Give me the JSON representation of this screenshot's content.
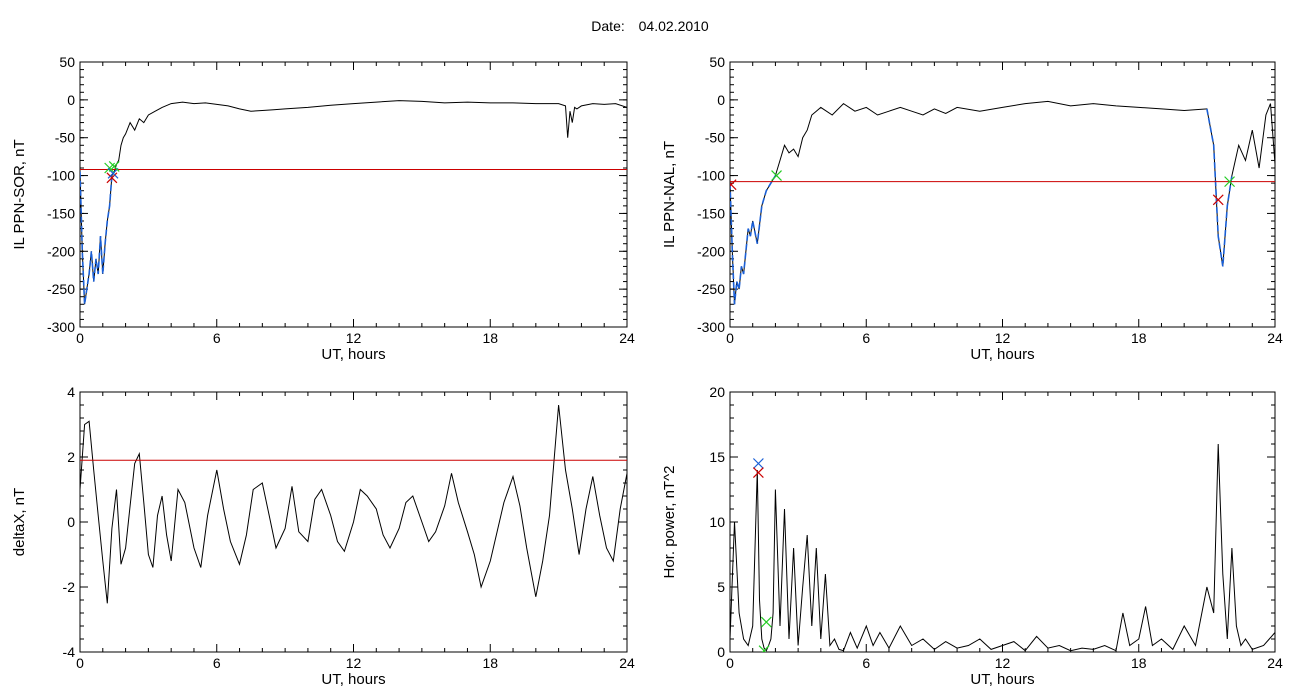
{
  "title": {
    "label": "Date:",
    "value": "04.02.2010"
  },
  "colors": {
    "axis": "#000000",
    "trace": "#000000",
    "threshold": "#cc0000",
    "highlight": "#1a5fd6",
    "marker_red": "#cc0000",
    "marker_green": "#22cc22",
    "marker_blue": "#1a5fd6"
  },
  "chart_data": [
    {
      "type": "line",
      "ylabel": "IL PPN-SOR, nT",
      "xlabel": "UT, hours",
      "xlim": [
        0,
        24
      ],
      "ylim": [
        -300,
        50
      ],
      "xticks": [
        0,
        6,
        12,
        18,
        24
      ],
      "yticks": [
        -300,
        -250,
        -200,
        -150,
        -100,
        -50,
        0,
        50
      ],
      "threshold": -92,
      "series": [
        {
          "x": [
            0,
            0.1,
            0.2,
            0.3,
            0.4,
            0.5,
            0.6,
            0.7,
            0.8,
            0.9,
            1.0,
            1.1,
            1.2,
            1.3,
            1.4,
            1.5,
            1.6,
            1.7,
            1.8,
            1.9,
            2.0,
            2.2,
            2.4,
            2.6,
            2.8,
            3.0,
            3.3,
            3.6,
            4.0,
            4.5,
            5.0,
            5.5,
            6.0,
            6.5,
            7.0,
            7.5,
            8.0,
            8.5,
            9.0,
            10.0,
            11.0,
            12.0,
            13.0,
            14.0,
            15.0,
            16.0,
            17.0,
            18.0,
            19.0,
            20.0,
            21.0,
            21.3,
            21.4,
            21.5,
            21.6,
            21.7,
            21.8,
            22.0,
            22.5,
            23.0,
            23.5,
            24.0
          ],
          "y": [
            -95,
            -200,
            -270,
            -250,
            -230,
            -200,
            -240,
            -210,
            -230,
            -180,
            -230,
            -190,
            -160,
            -140,
            -100,
            -95,
            -85,
            -80,
            -60,
            -50,
            -45,
            -30,
            -40,
            -25,
            -30,
            -20,
            -15,
            -10,
            -5,
            -3,
            -5,
            -4,
            -6,
            -8,
            -12,
            -15,
            -14,
            -13,
            -12,
            -10,
            -7,
            -5,
            -3,
            -1,
            -2,
            -4,
            -3,
            -4,
            -4,
            -5,
            -5,
            -8,
            -50,
            -15,
            -30,
            -10,
            -12,
            -8,
            -5,
            -6,
            -5,
            -10
          ]
        }
      ],
      "highlight_range": [
        0,
        1.5
      ],
      "markers": [
        {
          "x": 1.3,
          "y": -90,
          "color": "green"
        },
        {
          "x": 1.4,
          "y": -103,
          "color": "red"
        },
        {
          "x": 1.45,
          "y": -97,
          "color": "blue"
        },
        {
          "x": 1.5,
          "y": -88,
          "color": "green"
        }
      ]
    },
    {
      "type": "line",
      "ylabel": "IL PPN-NAL, nT",
      "xlabel": "UT, hours",
      "xlim": [
        0,
        24
      ],
      "ylim": [
        -300,
        50
      ],
      "xticks": [
        0,
        6,
        12,
        18,
        24
      ],
      "yticks": [
        -300,
        -250,
        -200,
        -150,
        -100,
        -50,
        0,
        50
      ],
      "threshold": -108,
      "series": [
        {
          "x": [
            0,
            0.1,
            0.2,
            0.3,
            0.4,
            0.5,
            0.6,
            0.7,
            0.8,
            0.9,
            1.0,
            1.2,
            1.4,
            1.6,
            1.8,
            2.0,
            2.2,
            2.4,
            2.6,
            2.8,
            3.0,
            3.2,
            3.4,
            3.6,
            3.8,
            4.0,
            4.5,
            5.0,
            5.5,
            6.0,
            6.5,
            7.0,
            7.5,
            8.0,
            8.5,
            9.0,
            9.5,
            10.0,
            11.0,
            12.0,
            13.0,
            14.0,
            15.0,
            16.0,
            17.0,
            18.0,
            19.0,
            20.0,
            21.0,
            21.3,
            21.5,
            21.7,
            21.9,
            22.1,
            22.4,
            22.7,
            23.0,
            23.3,
            23.6,
            23.8,
            24.0
          ],
          "y": [
            -110,
            -200,
            -270,
            -240,
            -250,
            -220,
            -230,
            -200,
            -170,
            -180,
            -160,
            -190,
            -140,
            -120,
            -110,
            -100,
            -80,
            -60,
            -70,
            -65,
            -75,
            -50,
            -40,
            -20,
            -15,
            -10,
            -20,
            -5,
            -15,
            -10,
            -20,
            -15,
            -10,
            -15,
            -20,
            -12,
            -18,
            -10,
            -15,
            -10,
            -5,
            -2,
            -8,
            -5,
            -8,
            -10,
            -12,
            -14,
            -12,
            -60,
            -180,
            -220,
            -140,
            -100,
            -60,
            -80,
            -40,
            -90,
            -20,
            -5,
            -85
          ]
        }
      ],
      "highlight_range": [
        0,
        2.0
      ],
      "highlight_range_2": [
        21.0,
        22.1
      ],
      "markers": [
        {
          "x": 0.05,
          "y": -112,
          "color": "red"
        },
        {
          "x": 2.05,
          "y": -100,
          "color": "green"
        },
        {
          "x": 21.5,
          "y": -132,
          "color": "red"
        },
        {
          "x": 22.0,
          "y": -108,
          "color": "green"
        }
      ]
    },
    {
      "type": "line",
      "ylabel": "deltaX, nT",
      "xlabel": "UT, hours",
      "xlim": [
        0,
        24
      ],
      "ylim": [
        -4,
        4
      ],
      "xticks": [
        0,
        6,
        12,
        18,
        24
      ],
      "yticks": [
        -4,
        -2,
        0,
        2,
        4
      ],
      "threshold": 1.9,
      "series": [
        {
          "x": [
            0,
            0.2,
            0.4,
            0.6,
            0.8,
            1.0,
            1.2,
            1.4,
            1.6,
            1.8,
            2.0,
            2.2,
            2.4,
            2.6,
            2.8,
            3.0,
            3.2,
            3.4,
            3.6,
            3.8,
            4.0,
            4.3,
            4.6,
            5.0,
            5.3,
            5.6,
            6.0,
            6.3,
            6.6,
            7.0,
            7.3,
            7.6,
            8.0,
            8.3,
            8.6,
            9.0,
            9.3,
            9.6,
            10.0,
            10.3,
            10.6,
            11.0,
            11.3,
            11.6,
            12.0,
            12.3,
            12.6,
            13.0,
            13.3,
            13.6,
            14.0,
            14.3,
            14.6,
            15.0,
            15.3,
            15.6,
            16.0,
            16.3,
            16.6,
            17.0,
            17.3,
            17.6,
            18.0,
            18.3,
            18.6,
            19.0,
            19.3,
            19.6,
            20.0,
            20.3,
            20.6,
            21.0,
            21.3,
            21.6,
            21.9,
            22.2,
            22.5,
            22.8,
            23.1,
            23.4,
            23.7,
            24.0
          ],
          "y": [
            1.0,
            3.0,
            3.1,
            1.6,
            0.2,
            -1.2,
            -2.5,
            -0.2,
            1.0,
            -1.3,
            -0.8,
            0.5,
            1.8,
            2.1,
            0.6,
            -1.0,
            -1.4,
            0.2,
            0.8,
            -0.4,
            -1.2,
            1.0,
            0.6,
            -0.8,
            -1.4,
            0.2,
            1.6,
            0.4,
            -0.6,
            -1.3,
            -0.4,
            1.0,
            1.2,
            0.2,
            -0.8,
            -0.2,
            1.1,
            -0.3,
            -0.6,
            0.7,
            1.0,
            0.2,
            -0.6,
            -0.9,
            0.0,
            1.0,
            0.8,
            0.4,
            -0.4,
            -0.8,
            -0.2,
            0.6,
            0.8,
            0.0,
            -0.6,
            -0.3,
            0.5,
            1.5,
            0.6,
            -0.3,
            -1.0,
            -2.0,
            -1.2,
            -0.3,
            0.6,
            1.4,
            0.5,
            -0.8,
            -2.3,
            -1.2,
            0.2,
            3.6,
            1.6,
            0.4,
            -1.0,
            0.4,
            1.4,
            0.2,
            -0.8,
            -1.2,
            0.4,
            1.5
          ]
        }
      ],
      "markers": []
    },
    {
      "type": "line",
      "ylabel": "Hor. power, nT^2",
      "xlabel": "UT, hours",
      "xlim": [
        0,
        24
      ],
      "ylim": [
        0,
        20
      ],
      "xticks": [
        0,
        6,
        12,
        18,
        24
      ],
      "yticks": [
        0,
        5,
        10,
        15,
        20
      ],
      "threshold": null,
      "series": [
        {
          "x": [
            0,
            0.2,
            0.4,
            0.6,
            0.8,
            1.0,
            1.2,
            1.3,
            1.4,
            1.5,
            1.6,
            1.7,
            1.8,
            1.9,
            2.0,
            2.2,
            2.4,
            2.6,
            2.8,
            3.0,
            3.2,
            3.4,
            3.6,
            3.8,
            4.0,
            4.2,
            4.4,
            4.6,
            4.8,
            5.0,
            5.3,
            5.6,
            6.0,
            6.3,
            6.6,
            7.0,
            7.5,
            8.0,
            8.5,
            9.0,
            9.5,
            10.0,
            10.5,
            11.0,
            11.5,
            12.0,
            12.5,
            13.0,
            13.5,
            14.0,
            14.5,
            15.0,
            15.5,
            16.0,
            16.5,
            17.0,
            17.3,
            17.6,
            18.0,
            18.3,
            18.6,
            19.0,
            19.5,
            20.0,
            20.5,
            21.0,
            21.3,
            21.5,
            21.7,
            21.9,
            22.1,
            22.3,
            22.5,
            22.7,
            23.0,
            23.5,
            24.0
          ],
          "y": [
            1,
            10,
            3,
            1,
            0.5,
            2,
            14,
            4,
            1,
            0.3,
            0.1,
            0.5,
            1,
            3,
            12.5,
            2,
            11,
            1,
            8,
            0.5,
            5,
            9,
            2,
            8,
            1,
            6,
            0.5,
            1,
            0.2,
            0.1,
            1.5,
            0.3,
            2,
            0.5,
            1.5,
            0.3,
            2,
            0.5,
            1,
            0.2,
            0.8,
            0.3,
            0.5,
            1,
            0.2,
            0.5,
            0.8,
            0.1,
            1.2,
            0.3,
            0.5,
            0.1,
            0.3,
            0.2,
            0.5,
            0.1,
            3,
            0.5,
            1,
            3.5,
            0.5,
            1,
            0.2,
            2,
            0.5,
            5,
            3,
            16,
            6,
            1,
            8,
            2,
            0.5,
            1,
            0.2,
            0.5,
            1.5
          ]
        }
      ],
      "markers": [
        {
          "x": 1.25,
          "y": 14.5,
          "color": "blue"
        },
        {
          "x": 1.25,
          "y": 13.8,
          "color": "red"
        },
        {
          "x": 1.6,
          "y": 2.3,
          "color": "green"
        },
        {
          "x": 1.5,
          "y": 0.1,
          "color": "green"
        }
      ]
    }
  ]
}
